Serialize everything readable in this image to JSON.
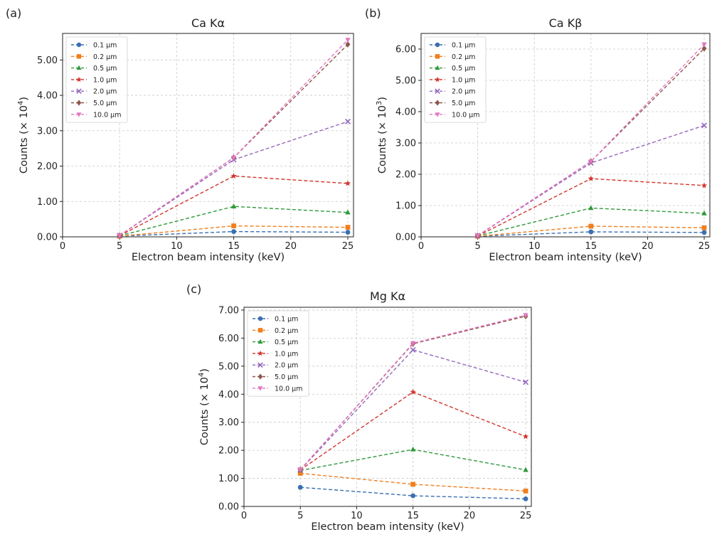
{
  "chart_data": [
    {
      "panel_label": "(a)",
      "type": "line",
      "title": "Ca Kα",
      "xlabel": "Electron beam intensity (keV)",
      "ylabel_parts": [
        "Counts (× 10",
        "4",
        ")"
      ],
      "xlim": [
        0,
        25.5
      ],
      "ylim": [
        0,
        5.75
      ],
      "xticks": [
        0,
        5,
        10,
        15,
        20,
        25
      ],
      "yticks": [
        "0.00",
        "1.00",
        "2.00",
        "3.00",
        "4.00",
        "5.00"
      ],
      "grid": true,
      "legend_position": "top-left",
      "x": [
        5,
        15,
        25
      ],
      "series": [
        {
          "name": "0.1 μm",
          "values": [
            0.02,
            0.15,
            0.13
          ]
        },
        {
          "name": "0.2 μm",
          "values": [
            0.02,
            0.31,
            0.27
          ]
        },
        {
          "name": "0.5 μm",
          "values": [
            0.03,
            0.86,
            0.69
          ]
        },
        {
          "name": "1.0 μm",
          "values": [
            0.03,
            1.72,
            1.51
          ]
        },
        {
          "name": "2.0 μm",
          "values": [
            0.04,
            2.18,
            3.26
          ]
        },
        {
          "name": "5.0 μm",
          "values": [
            0.04,
            2.24,
            5.44
          ]
        },
        {
          "name": "10.0 μm",
          "values": [
            0.04,
            2.24,
            5.57
          ]
        }
      ]
    },
    {
      "panel_label": "(b)",
      "type": "line",
      "title": "Ca Kβ",
      "xlabel": "Electron beam intensity (keV)",
      "ylabel_parts": [
        "Counts (× 10",
        "3",
        ")"
      ],
      "xlim": [
        0,
        25.5
      ],
      "ylim": [
        0,
        6.5
      ],
      "xticks": [
        0,
        5,
        10,
        15,
        20,
        25
      ],
      "yticks": [
        "0.00",
        "1.00",
        "2.00",
        "3.00",
        "4.00",
        "5.00",
        "6.00"
      ],
      "grid": true,
      "legend_position": "top-left",
      "x": [
        5,
        15,
        25
      ],
      "series": [
        {
          "name": "0.1 μm",
          "values": [
            0.02,
            0.16,
            0.14
          ]
        },
        {
          "name": "0.2 μm",
          "values": [
            0.02,
            0.34,
            0.29
          ]
        },
        {
          "name": "0.5 μm",
          "values": [
            0.03,
            0.92,
            0.75
          ]
        },
        {
          "name": "1.0 μm",
          "values": [
            0.03,
            1.86,
            1.64
          ]
        },
        {
          "name": "2.0 μm",
          "values": [
            0.04,
            2.36,
            3.56
          ]
        },
        {
          "name": "5.0 μm",
          "values": [
            0.04,
            2.41,
            6.02
          ]
        },
        {
          "name": "10.0 μm",
          "values": [
            0.04,
            2.41,
            6.15
          ]
        }
      ]
    },
    {
      "panel_label": "(c)",
      "type": "line",
      "title": "Mg Kα",
      "xlabel": "Electron beam intensity (keV)",
      "ylabel_parts": [
        "Counts (× 10",
        "4",
        ")"
      ],
      "xlim": [
        0,
        25.5
      ],
      "ylim": [
        0,
        7.1
      ],
      "xticks": [
        0,
        5,
        10,
        15,
        20,
        25
      ],
      "yticks": [
        "0.00",
        "1.00",
        "2.00",
        "3.00",
        "4.00",
        "5.00",
        "6.00",
        "7.00"
      ],
      "grid": true,
      "legend_position": "top-left",
      "x": [
        5,
        15,
        25
      ],
      "series": [
        {
          "name": "0.1 μm",
          "values": [
            0.68,
            0.38,
            0.27
          ]
        },
        {
          "name": "0.2 μm",
          "values": [
            1.18,
            0.79,
            0.55
          ]
        },
        {
          "name": "0.5 μm",
          "values": [
            1.28,
            2.03,
            1.3
          ]
        },
        {
          "name": "1.0 μm",
          "values": [
            1.3,
            4.08,
            2.49
          ]
        },
        {
          "name": "2.0 μm",
          "values": [
            1.3,
            5.58,
            4.43
          ]
        },
        {
          "name": "5.0 μm",
          "values": [
            1.31,
            5.8,
            6.78
          ]
        },
        {
          "name": "10.0 μm",
          "values": [
            1.31,
            5.82,
            6.82
          ]
        }
      ]
    }
  ],
  "series_styles": [
    {
      "color": "#3a6fb0",
      "marker": "circle"
    },
    {
      "color": "#f07f1e",
      "marker": "square"
    },
    {
      "color": "#2e9a3a",
      "marker": "triangle-up"
    },
    {
      "color": "#d2342a",
      "marker": "star"
    },
    {
      "color": "#9467bd",
      "marker": "x"
    },
    {
      "color": "#8c564b",
      "marker": "diamond"
    },
    {
      "color": "#e377c2",
      "marker": "triangle-down"
    }
  ]
}
